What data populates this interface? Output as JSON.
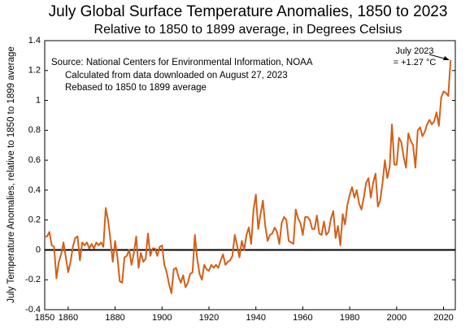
{
  "chart_data": {
    "type": "line",
    "title": "July Global Surface Temperature Anomalies, 1850 to 2023",
    "subtitle": "Relative to 1850 to 1899 average, in Degrees Celsius",
    "y_label": "July Temperature Anomalies, relative to 1850 to 1899 average",
    "annotations": [
      "Source:  National Centers for Environmental Information, NOAA",
      "Calculated from data downloaded on August 27, 2023",
      "Rebased to 1850 to 1899 average"
    ],
    "callout": [
      "July 2023",
      "= +1.27 °C"
    ],
    "xlim": [
      1850,
      2025
    ],
    "xticks": [
      1850,
      1860,
      1880,
      1900,
      1920,
      1940,
      1960,
      1980,
      2000,
      2020
    ],
    "ylim": [
      -0.4,
      1.4
    ],
    "yticks": [
      -0.4,
      -0.2,
      0,
      0.2,
      0.4,
      0.6,
      0.8,
      1,
      1.2,
      1.4
    ],
    "x": [
      1850,
      1851,
      1852,
      1853,
      1854,
      1855,
      1856,
      1857,
      1858,
      1859,
      1860,
      1861,
      1862,
      1863,
      1864,
      1865,
      1866,
      1867,
      1868,
      1869,
      1870,
      1871,
      1872,
      1873,
      1874,
      1875,
      1876,
      1877,
      1878,
      1879,
      1880,
      1881,
      1882,
      1883,
      1884,
      1885,
      1886,
      1887,
      1888,
      1889,
      1890,
      1891,
      1892,
      1893,
      1894,
      1895,
      1896,
      1897,
      1898,
      1899,
      1900,
      1901,
      1902,
      1903,
      1904,
      1905,
      1906,
      1907,
      1908,
      1909,
      1910,
      1911,
      1912,
      1913,
      1914,
      1915,
      1916,
      1917,
      1918,
      1919,
      1920,
      1921,
      1922,
      1923,
      1924,
      1925,
      1926,
      1927,
      1928,
      1929,
      1930,
      1931,
      1932,
      1933,
      1934,
      1935,
      1936,
      1937,
      1938,
      1939,
      1940,
      1941,
      1942,
      1943,
      1944,
      1945,
      1946,
      1947,
      1948,
      1949,
      1950,
      1951,
      1952,
      1953,
      1954,
      1955,
      1956,
      1957,
      1958,
      1959,
      1960,
      1961,
      1962,
      1963,
      1964,
      1965,
      1966,
      1967,
      1968,
      1969,
      1970,
      1971,
      1972,
      1973,
      1974,
      1975,
      1976,
      1977,
      1978,
      1979,
      1980,
      1981,
      1982,
      1983,
      1984,
      1985,
      1986,
      1987,
      1988,
      1989,
      1990,
      1991,
      1992,
      1993,
      1994,
      1995,
      1996,
      1997,
      1998,
      1999,
      2000,
      2001,
      2002,
      2003,
      2004,
      2005,
      2006,
      2007,
      2008,
      2009,
      2010,
      2011,
      2012,
      2013,
      2014,
      2015,
      2016,
      2017,
      2018,
      2019,
      2020,
      2021,
      2022,
      2023
    ],
    "series": [
      {
        "name": "July anomaly",
        "color": "#d2601a",
        "values": [
          0.09,
          0.09,
          0.12,
          0.03,
          0.02,
          -0.19,
          -0.08,
          -0.03,
          0.05,
          -0.05,
          -0.15,
          -0.08,
          0.02,
          0.08,
          0.09,
          -0.07,
          0.05,
          0.03,
          0.05,
          0.01,
          0.04,
          0.01,
          0.05,
          0.03,
          0.05,
          0.02,
          0.28,
          0.2,
          0.07,
          -0.08,
          0.06,
          -0.05,
          -0.21,
          -0.22,
          -0.05,
          -0.04,
          0,
          -0.1,
          -0.02,
          0.09,
          -0.12,
          -0.02,
          -0.08,
          -0.06,
          0.11,
          -0.04,
          0.01,
          0.01,
          -0.04,
          0.02,
          0.03,
          -0.1,
          -0.15,
          -0.23,
          -0.29,
          -0.13,
          -0.12,
          -0.18,
          -0.22,
          -0.17,
          -0.25,
          -0.22,
          -0.16,
          -0.15,
          0.1,
          -0.06,
          -0.16,
          -0.2,
          -0.1,
          -0.13,
          -0.14,
          -0.1,
          -0.12,
          -0.1,
          -0.12,
          -0.07,
          -0.03,
          -0.1,
          -0.08,
          -0.07,
          -0.04,
          0.1,
          0.03,
          -0.05,
          0.06,
          0,
          0.1,
          0.15,
          0.04,
          0.27,
          0.37,
          0.14,
          0.24,
          0.33,
          0.16,
          0.06,
          0.1,
          0.11,
          0.15,
          0.12,
          0.04,
          0.18,
          0.22,
          0.2,
          0.06,
          0.05,
          0.04,
          0.27,
          0.21,
          0.18,
          0.1,
          0.22,
          0.22,
          0.2,
          0.14,
          0.14,
          0.23,
          0.11,
          0.1,
          0.19,
          0.1,
          0.12,
          0.21,
          0.26,
          0.08,
          0.16,
          0.03,
          0.24,
          0.17,
          0.3,
          0.37,
          0.42,
          0.35,
          0.4,
          0.31,
          0.27,
          0.35,
          0.45,
          0.48,
          0.35,
          0.45,
          0.51,
          0.29,
          0.33,
          0.45,
          0.6,
          0.48,
          0.55,
          0.84,
          0.57,
          0.57,
          0.75,
          0.72,
          0.62,
          0.55,
          0.78,
          0.73,
          0.7,
          0.55,
          0.8,
          0.82,
          0.76,
          0.79,
          0.84,
          0.87,
          0.84,
          0.86,
          0.92,
          0.83,
          1.02,
          1.06,
          1.05,
          1.03,
          1.27
        ]
      }
    ]
  }
}
